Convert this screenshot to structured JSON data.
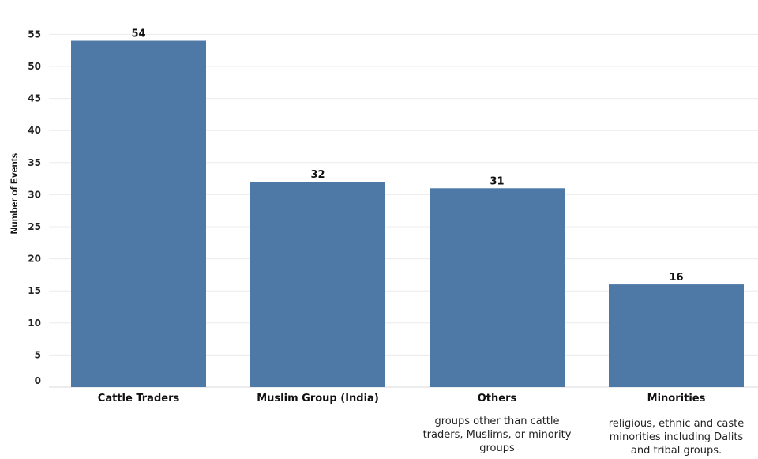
{
  "chart_data": {
    "type": "bar",
    "categories": [
      "Cattle Traders",
      "Muslim Group (India)",
      "Others",
      "Minorities"
    ],
    "values": [
      54,
      32,
      31,
      16
    ],
    "ylabel": "Number of Events",
    "xlabel": "",
    "title": "",
    "ylim": [
      0,
      57
    ],
    "yticks": [
      0,
      5,
      10,
      15,
      20,
      25,
      30,
      35,
      40,
      45,
      50,
      55
    ],
    "grid": true,
    "bar_color": "#4e79a7",
    "notes": [
      "",
      "",
      [
        "groups other than cattle",
        "traders, Muslims, or minority",
        "groups"
      ],
      [
        "religious, ethnic and caste",
        "minorities including Dalits",
        "and tribal groups."
      ]
    ]
  }
}
